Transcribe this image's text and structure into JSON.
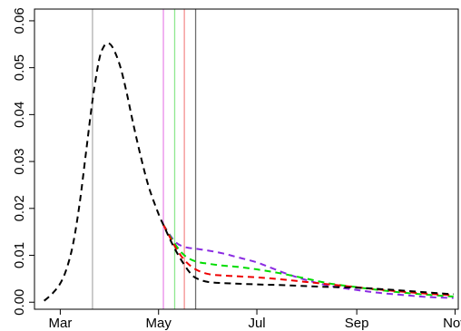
{
  "chart_data": {
    "type": "line",
    "title": "",
    "xlabel": "",
    "ylabel": "",
    "x_axis": {
      "type": "date",
      "range": [
        "2020-02-14",
        "2020-11-03"
      ],
      "ticks": [
        {
          "date": "2020-03-01",
          "label": "Mar"
        },
        {
          "date": "2020-05-01",
          "label": "May"
        },
        {
          "date": "2020-07-01",
          "label": "Jul"
        },
        {
          "date": "2020-09-01",
          "label": "Sep"
        },
        {
          "date": "2020-11-01",
          "label": "Nov"
        }
      ]
    },
    "y_axis": {
      "range": [
        -0.0015,
        0.0625
      ],
      "ticks": [
        {
          "value": 0.0,
          "label": "0.00"
        },
        {
          "value": 0.01,
          "label": "0.01"
        },
        {
          "value": 0.02,
          "label": "0.02"
        },
        {
          "value": 0.03,
          "label": "0.03"
        },
        {
          "value": 0.04,
          "label": "0.04"
        },
        {
          "value": 0.05,
          "label": "0.05"
        },
        {
          "value": 0.06,
          "label": "0.06"
        }
      ]
    },
    "grid": false,
    "legend": "none",
    "vertical_lines": [
      {
        "date": "2020-03-21",
        "color": "#b0b0b0"
      },
      {
        "date": "2020-05-04",
        "color": "#e98be9"
      },
      {
        "date": "2020-05-11",
        "color": "#8fe88f"
      },
      {
        "date": "2020-05-17",
        "color": "#f48f8f"
      },
      {
        "date": "2020-05-24",
        "color": "#707070"
      }
    ],
    "series": [
      {
        "color": "#8a2be2",
        "style": "dashed",
        "points": [
          [
            "2020-05-04",
            0.0165
          ],
          [
            "2020-05-11",
            0.013
          ],
          [
            "2020-05-17",
            0.0118
          ],
          [
            "2020-05-24",
            0.0114
          ],
          [
            "2020-06-01",
            0.011
          ],
          [
            "2020-06-10",
            0.0104
          ],
          [
            "2020-06-20",
            0.0095
          ],
          [
            "2020-07-01",
            0.0085
          ],
          [
            "2020-07-10",
            0.0073
          ],
          [
            "2020-07-20",
            0.006
          ],
          [
            "2020-08-01",
            0.0047
          ],
          [
            "2020-08-15",
            0.0035
          ],
          [
            "2020-09-01",
            0.0026
          ],
          [
            "2020-09-15",
            0.002
          ],
          [
            "2020-10-01",
            0.0015
          ],
          [
            "2020-10-15",
            0.0011
          ],
          [
            "2020-10-31",
            0.0009
          ]
        ]
      },
      {
        "color": "#00dd00",
        "style": "dashed",
        "points": [
          [
            "2020-05-04",
            0.0165
          ],
          [
            "2020-05-11",
            0.0125
          ],
          [
            "2020-05-17",
            0.01
          ],
          [
            "2020-05-24",
            0.0087
          ],
          [
            "2020-06-01",
            0.0082
          ],
          [
            "2020-06-10",
            0.0078
          ],
          [
            "2020-06-20",
            0.0075
          ],
          [
            "2020-07-01",
            0.007
          ],
          [
            "2020-07-15",
            0.0062
          ],
          [
            "2020-08-01",
            0.005
          ],
          [
            "2020-08-15",
            0.004
          ],
          [
            "2020-09-01",
            0.0032
          ],
          [
            "2020-09-15",
            0.0026
          ],
          [
            "2020-10-01",
            0.002
          ],
          [
            "2020-10-15",
            0.0016
          ],
          [
            "2020-10-31",
            0.0012
          ]
        ]
      },
      {
        "color": "#ee0000",
        "style": "dashed",
        "points": [
          [
            "2020-05-04",
            0.0165
          ],
          [
            "2020-05-11",
            0.012
          ],
          [
            "2020-05-17",
            0.009
          ],
          [
            "2020-05-24",
            0.007
          ],
          [
            "2020-06-01",
            0.006
          ],
          [
            "2020-06-10",
            0.0057
          ],
          [
            "2020-06-20",
            0.0055
          ],
          [
            "2020-07-01",
            0.0053
          ],
          [
            "2020-07-15",
            0.0049
          ],
          [
            "2020-08-01",
            0.0043
          ],
          [
            "2020-08-15",
            0.0038
          ],
          [
            "2020-09-01",
            0.0032
          ],
          [
            "2020-09-15",
            0.0027
          ],
          [
            "2020-10-01",
            0.0022
          ],
          [
            "2020-10-15",
            0.0018
          ],
          [
            "2020-10-31",
            0.0015
          ]
        ]
      },
      {
        "color": "#000000",
        "style": "dashed",
        "points": [
          [
            "2020-02-20",
            0.0003
          ],
          [
            "2020-02-25",
            0.0018
          ],
          [
            "2020-03-01",
            0.004
          ],
          [
            "2020-03-05",
            0.0072
          ],
          [
            "2020-03-09",
            0.0125
          ],
          [
            "2020-03-13",
            0.021
          ],
          [
            "2020-03-17",
            0.032
          ],
          [
            "2020-03-21",
            0.043
          ],
          [
            "2020-03-25",
            0.0515
          ],
          [
            "2020-03-28",
            0.0545
          ],
          [
            "2020-03-31",
            0.0552
          ],
          [
            "2020-04-03",
            0.054
          ],
          [
            "2020-04-07",
            0.0505
          ],
          [
            "2020-04-11",
            0.045
          ],
          [
            "2020-04-15",
            0.0385
          ],
          [
            "2020-04-20",
            0.031
          ],
          [
            "2020-04-25",
            0.0245
          ],
          [
            "2020-05-01",
            0.0188
          ],
          [
            "2020-05-04",
            0.0165
          ],
          [
            "2020-05-08",
            0.0135
          ],
          [
            "2020-05-12",
            0.0108
          ],
          [
            "2020-05-16",
            0.0085
          ],
          [
            "2020-05-20",
            0.0065
          ],
          [
            "2020-05-24",
            0.0052
          ],
          [
            "2020-06-01",
            0.0043
          ],
          [
            "2020-06-15",
            0.004
          ],
          [
            "2020-07-01",
            0.0038
          ],
          [
            "2020-07-20",
            0.0036
          ],
          [
            "2020-08-10",
            0.0033
          ],
          [
            "2020-09-01",
            0.0031
          ],
          [
            "2020-09-20",
            0.0027
          ],
          [
            "2020-10-10",
            0.0022
          ],
          [
            "2020-10-31",
            0.0017
          ]
        ]
      }
    ]
  }
}
